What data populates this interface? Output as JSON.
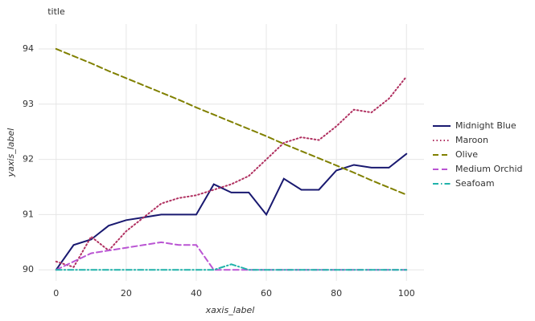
{
  "chart_data": {
    "type": "line",
    "title": "title",
    "xlabel": "xaxis_label",
    "ylabel": "yaxis_label",
    "x": [
      0,
      5,
      10,
      15,
      20,
      25,
      30,
      35,
      40,
      45,
      50,
      55,
      60,
      65,
      70,
      75,
      80,
      85,
      90,
      95,
      100
    ],
    "series": [
      {
        "name": "Midnight Blue",
        "color": "#191970",
        "linestyle": "solid",
        "values": [
          90.0,
          90.45,
          90.55,
          90.8,
          90.9,
          90.95,
          91.0,
          91.0,
          91.0,
          91.55,
          91.4,
          91.4,
          91.0,
          91.65,
          91.45,
          91.45,
          91.8,
          91.9,
          91.85,
          91.85,
          92.1
        ]
      },
      {
        "name": "Maroon",
        "color": "#b03060",
        "linestyle": "dotted",
        "values": [
          90.15,
          90.05,
          90.6,
          90.35,
          90.7,
          90.95,
          91.2,
          91.3,
          91.35,
          91.45,
          91.55,
          91.7,
          92.0,
          92.3,
          92.4,
          92.35,
          92.6,
          92.9,
          92.85,
          93.1,
          93.5
        ]
      },
      {
        "name": "Olive",
        "color": "#808000",
        "linestyle": "dashed",
        "values": [
          94.0,
          93.87,
          93.74,
          93.6,
          93.47,
          93.34,
          93.21,
          93.08,
          92.94,
          92.81,
          92.68,
          92.55,
          92.42,
          92.28,
          92.15,
          92.02,
          91.89,
          91.76,
          91.62,
          91.49,
          91.36
        ]
      },
      {
        "name": "Medium Orchid",
        "color": "#ba55d3",
        "linestyle": "dashed",
        "values": [
          90.0,
          90.15,
          90.3,
          90.35,
          90.4,
          90.45,
          90.5,
          90.45,
          90.45,
          90.0,
          90.0,
          90.0,
          90.0,
          90.0,
          90.0,
          90.0,
          90.0,
          90.0,
          90.0,
          90.0,
          90.0
        ]
      },
      {
        "name": "Seafoam",
        "color": "#20b2aa",
        "linestyle": "dashdot",
        "values": [
          90.0,
          90.0,
          90.0,
          90.0,
          90.0,
          90.0,
          90.0,
          90.0,
          90.0,
          90.0,
          90.1,
          90.0,
          90.0,
          90.0,
          90.0,
          90.0,
          90.0,
          90.0,
          90.0,
          90.0,
          90.0
        ]
      }
    ],
    "xlim": [
      -5,
      105
    ],
    "ylim": [
      89.8,
      94.45
    ],
    "xticks": [
      0,
      20,
      40,
      60,
      80,
      100
    ],
    "yticks": [
      90,
      91,
      92,
      93,
      94
    ],
    "grid": true,
    "legend": "right"
  }
}
